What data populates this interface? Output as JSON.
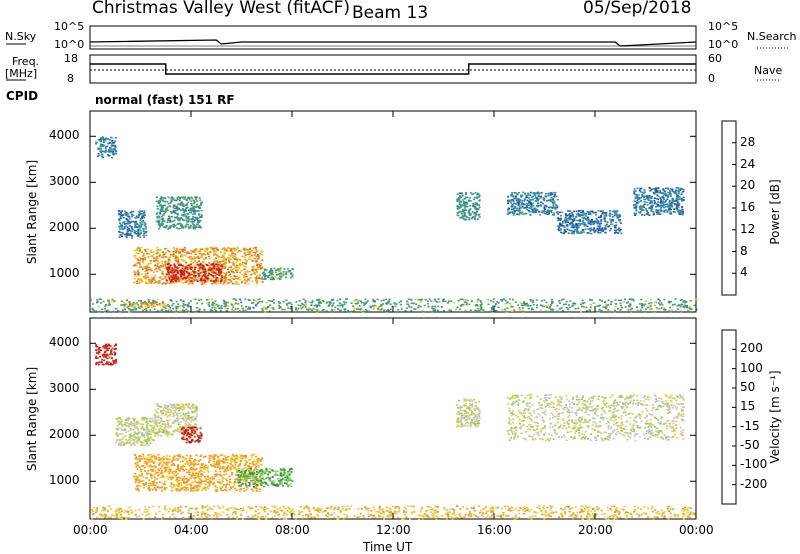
{
  "header": {
    "station": "Christmas Valley West (fitACF)",
    "beam": "Beam 13",
    "date": "05/Sep/2018"
  },
  "strips": {
    "nsky_label": "N.Sky",
    "nsky_ticks": [
      "10^5",
      "10^0"
    ],
    "nsearch_label": "N.Search",
    "freq_label_1": "Freq.",
    "freq_label_2": "[MHz]",
    "freq_ticks": [
      "18",
      "8"
    ],
    "nave_label": "Nave",
    "nave_ticks": [
      "60",
      "0"
    ],
    "cpid_label": "CPID",
    "cpid_value": "normal (fast) 151 RF"
  },
  "colors": {
    "power_scale": [
      "#1e28c8",
      "#2850b4",
      "#2d7bb4",
      "#37a08c",
      "#55a050",
      "#e6c81e",
      "#f59619",
      "#eb641e",
      "#dc3219",
      "#c81414"
    ],
    "velocity_scale": [
      "#1e32b4",
      "#2864a0",
      "#2d8c50",
      "#46b43c",
      "#8cd246",
      "#c8c8c8",
      "#f0c828",
      "#f59619",
      "#f06414",
      "#dc3214",
      "#c81414"
    ]
  },
  "chart_data": [
    {
      "type": "heatmap",
      "name": "power",
      "ylabel": "Slant Range [km]",
      "ylim": [
        180,
        4550
      ],
      "y_ticks": [
        "4000",
        "3000",
        "2000",
        "1000"
      ],
      "x_ticks": [
        "00:00",
        "04:00",
        "08:00",
        "12:00",
        "16:00",
        "20:00",
        "00:00"
      ],
      "xlim_hours": [
        0,
        24
      ],
      "colorbar_label": "Power [dB]",
      "colorbar_ticks": [
        "28",
        "24",
        "20",
        "16",
        "12",
        "8",
        "4"
      ],
      "features": [
        {
          "t": [
            0.2,
            1.0
          ],
          "r": [
            3550,
            4000
          ],
          "v": 8
        },
        {
          "t": [
            1.1,
            2.2
          ],
          "r": [
            1800,
            2400
          ],
          "v": 8
        },
        {
          "t": [
            2.6,
            4.4
          ],
          "r": [
            2000,
            2700
          ],
          "v": 11
        },
        {
          "t": [
            1.7,
            6.8
          ],
          "r": [
            800,
            1600
          ],
          "v": 19
        },
        {
          "t": [
            3.0,
            5.2
          ],
          "r": [
            850,
            1250
          ],
          "v": 27
        },
        {
          "t": [
            6.8,
            8.0
          ],
          "r": [
            900,
            1150
          ],
          "v": 12
        },
        {
          "t": [
            0,
            24
          ],
          "r": [
            200,
            480
          ],
          "v": 12
        },
        {
          "t": [
            1.5,
            3.0
          ],
          "r": [
            300,
            400
          ],
          "v": 20
        },
        {
          "t": [
            14.5,
            15.4
          ],
          "r": [
            2200,
            2800
          ],
          "v": 10
        },
        {
          "t": [
            16.5,
            18.5
          ],
          "r": [
            2300,
            2800
          ],
          "v": 8
        },
        {
          "t": [
            18.5,
            21.0
          ],
          "r": [
            1900,
            2400
          ],
          "v": 7
        },
        {
          "t": [
            21.5,
            23.5
          ],
          "r": [
            2300,
            2900
          ],
          "v": 8
        }
      ]
    },
    {
      "type": "heatmap",
      "name": "velocity",
      "ylabel": "Slant Range [km]",
      "xlabel": "Time UT",
      "ylim": [
        180,
        4550
      ],
      "y_ticks": [
        "4000",
        "3000",
        "2000",
        "1000"
      ],
      "x_ticks": [
        "00:00",
        "04:00",
        "08:00",
        "12:00",
        "16:00",
        "20:00",
        "00:00"
      ],
      "xlim_hours": [
        0,
        24
      ],
      "colorbar_label": "Velocity [m s⁻¹]",
      "colorbar_ticks": [
        "200",
        "100",
        "50",
        "15",
        "-15",
        "-50",
        "-100",
        "-200"
      ],
      "features": [
        {
          "t": [
            0.2,
            1.0
          ],
          "r": [
            3550,
            4000
          ],
          "v": -200
        },
        {
          "t": [
            1.0,
            2.5
          ],
          "r": [
            1800,
            2400
          ],
          "v": 0
        },
        {
          "t": [
            2.5,
            4.2
          ],
          "r": [
            2000,
            2700
          ],
          "v": 0
        },
        {
          "t": [
            3.6,
            4.4
          ],
          "r": [
            1850,
            2200
          ],
          "v": -200
        },
        {
          "t": [
            1.7,
            6.8
          ],
          "r": [
            800,
            1600
          ],
          "v": -60
        },
        {
          "t": [
            5.8,
            8.0
          ],
          "r": [
            900,
            1300
          ],
          "v": 40
        },
        {
          "t": [
            0,
            24
          ],
          "r": [
            200,
            480
          ],
          "v": -40
        },
        {
          "t": [
            14.5,
            15.4
          ],
          "r": [
            2200,
            2800
          ],
          "v": 0
        },
        {
          "t": [
            16.5,
            23.5
          ],
          "r": [
            1900,
            2900
          ],
          "v": 0
        }
      ]
    }
  ]
}
